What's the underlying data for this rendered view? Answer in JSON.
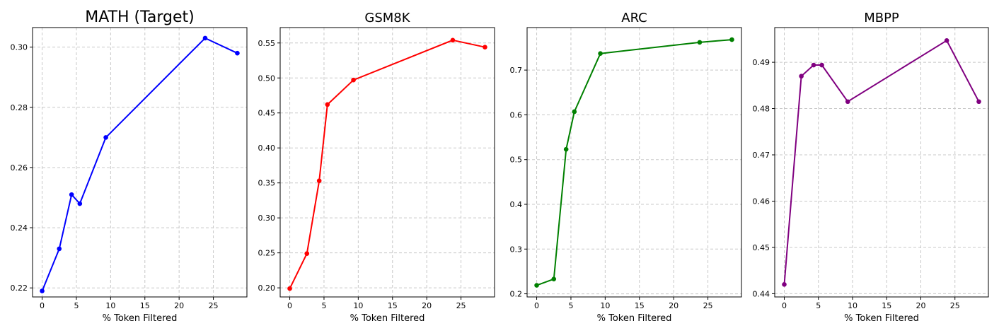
{
  "chart_data": [
    {
      "type": "line",
      "title": "MATH (Target)",
      "xlabel": "% Token Filtered",
      "ylabel": "",
      "color": "#0000ff",
      "x": [
        0,
        2.5,
        4.3,
        5.5,
        9.3,
        23.8,
        28.5
      ],
      "y": [
        0.219,
        0.233,
        0.251,
        0.248,
        0.27,
        0.303,
        0.298
      ],
      "xlim": [
        -1.4,
        29.9
      ],
      "ylim": [
        0.217,
        0.3065
      ],
      "xticks": [
        0,
        5,
        10,
        15,
        20,
        25
      ],
      "yticks": [
        0.22,
        0.24,
        0.26,
        0.28,
        0.3
      ],
      "ytick_labels": [
        "0.22",
        "0.24",
        "0.26",
        "0.28",
        "0.30"
      ],
      "grid": true
    },
    {
      "type": "line",
      "title": "GSM8K",
      "xlabel": "% Token Filtered",
      "ylabel": "",
      "color": "#ff0000",
      "x": [
        0,
        2.5,
        4.3,
        5.5,
        9.3,
        23.8,
        28.5
      ],
      "y": [
        0.199,
        0.249,
        0.353,
        0.462,
        0.497,
        0.554,
        0.544
      ],
      "xlim": [
        -1.4,
        29.9
      ],
      "ylim": [
        0.187,
        0.572
      ],
      "xticks": [
        0,
        5,
        10,
        15,
        20,
        25
      ],
      "yticks": [
        0.2,
        0.25,
        0.3,
        0.35,
        0.4,
        0.45,
        0.5,
        0.55
      ],
      "ytick_labels": [
        "0.20",
        "0.25",
        "0.30",
        "0.35",
        "0.40",
        "0.45",
        "0.50",
        "0.55"
      ],
      "grid": true
    },
    {
      "type": "line",
      "title": "ARC",
      "xlabel": "% Token Filtered",
      "ylabel": "",
      "color": "#008000",
      "x": [
        0,
        2.5,
        4.3,
        5.5,
        9.3,
        23.8,
        28.5
      ],
      "y": [
        0.219,
        0.233,
        0.523,
        0.607,
        0.737,
        0.762,
        0.768
      ],
      "xlim": [
        -1.4,
        29.9
      ],
      "ylim": [
        0.193,
        0.795
      ],
      "xticks": [
        0,
        5,
        10,
        15,
        20,
        25
      ],
      "yticks": [
        0.2,
        0.3,
        0.4,
        0.5,
        0.6,
        0.7
      ],
      "ytick_labels": [
        "0.2",
        "0.3",
        "0.4",
        "0.5",
        "0.6",
        "0.7"
      ],
      "grid": true
    },
    {
      "type": "line",
      "title": "MBPP",
      "xlabel": "% Token Filtered",
      "ylabel": "",
      "color": "#800080",
      "x": [
        0,
        2.5,
        4.3,
        5.5,
        9.3,
        23.8,
        28.5
      ],
      "y": [
        0.442,
        0.487,
        0.4894,
        0.4894,
        0.4815,
        0.4947,
        0.4815
      ],
      "xlim": [
        -1.4,
        29.9
      ],
      "ylim": [
        0.4393,
        0.4975
      ],
      "xticks": [
        0,
        5,
        10,
        15,
        20,
        25
      ],
      "yticks": [
        0.44,
        0.45,
        0.46,
        0.47,
        0.48,
        0.49
      ],
      "ytick_labels": [
        "0.44",
        "0.45",
        "0.46",
        "0.47",
        "0.48",
        "0.49"
      ],
      "grid": true
    }
  ]
}
